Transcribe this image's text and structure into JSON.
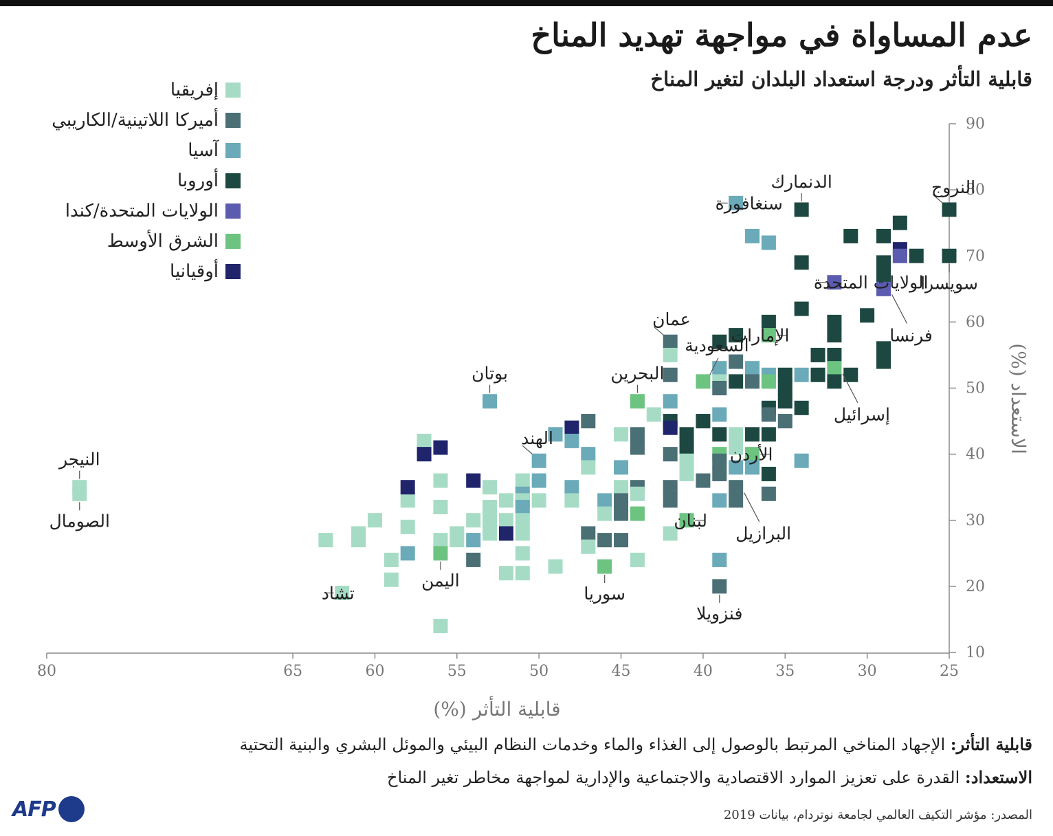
{
  "title": "عدم المساواة في مواجهة تهديد المناخ",
  "subtitle": "قابلية التأثر ودرجة استعداد البلدان لتغير المناخ",
  "definitions": {
    "vulnerability_label": "قابلية التأثر:",
    "vulnerability_text": "الإجهاد المناخي المرتبط بالوصول إلى الغذاء والماء وخدمات النظام البيئي والموئل البشري والبنية التحتية",
    "readiness_label": "الاستعداد:",
    "readiness_text": "القدرة على تعزيز الموارد الاقتصادية والاجتماعية والإدارية لمواجهة مخاطر تغير المناخ"
  },
  "source": "المصدر: مؤشر التكيف العالمي لجامعة نوتردام، بيانات 2019",
  "logo": {
    "text": "AFP",
    "color": "#1e3a8a"
  },
  "chart_data": {
    "type": "scatter",
    "xlabel": "قابلية التأثر (%)",
    "ylabel": "الاستعداد (%)",
    "xlim": [
      80,
      25
    ],
    "ylim": [
      10,
      90
    ],
    "xticks": [
      80,
      65,
      60,
      55,
      50,
      45,
      40,
      35,
      30,
      25
    ],
    "yticks": [
      10,
      20,
      30,
      40,
      50,
      60,
      70,
      80,
      90
    ],
    "grid": false,
    "legend_position": "top-left",
    "regions": [
      {
        "key": "africa",
        "name": "إفريقيا",
        "color": "#a6dcc5"
      },
      {
        "key": "latam",
        "name": "أميركا اللاتينية/الكاريبي",
        "color": "#4a6f75"
      },
      {
        "key": "asia",
        "name": "آسيا",
        "color": "#6aaab9"
      },
      {
        "key": "europe",
        "name": "أوروبا",
        "color": "#1d4842"
      },
      {
        "key": "usca",
        "name": "الولايات المتحدة/كندا",
        "color": "#5b5bb0"
      },
      {
        "key": "mideast",
        "name": "الشرق الأوسط",
        "color": "#6cc480"
      },
      {
        "key": "oceania",
        "name": "أوقيانيا",
        "color": "#1f246b"
      }
    ],
    "points": [
      {
        "x": 78,
        "y": 35,
        "r": "africa"
      },
      {
        "x": 78,
        "y": 34,
        "r": "africa"
      },
      {
        "x": 63,
        "y": 27,
        "r": "africa"
      },
      {
        "x": 62,
        "y": 19,
        "r": "africa"
      },
      {
        "x": 61,
        "y": 28,
        "r": "africa"
      },
      {
        "x": 61,
        "y": 27,
        "r": "africa"
      },
      {
        "x": 60,
        "y": 30,
        "r": "africa"
      },
      {
        "x": 59,
        "y": 24,
        "r": "africa"
      },
      {
        "x": 59,
        "y": 21,
        "r": "africa"
      },
      {
        "x": 58,
        "y": 33,
        "r": "africa"
      },
      {
        "x": 58,
        "y": 29,
        "r": "africa"
      },
      {
        "x": 58,
        "y": 25,
        "r": "asia"
      },
      {
        "x": 58,
        "y": 35,
        "r": "oceania"
      },
      {
        "x": 57,
        "y": 42,
        "r": "africa"
      },
      {
        "x": 57,
        "y": 40,
        "r": "oceania"
      },
      {
        "x": 56,
        "y": 41,
        "r": "oceania"
      },
      {
        "x": 56,
        "y": 36,
        "r": "africa"
      },
      {
        "x": 56,
        "y": 32,
        "r": "africa"
      },
      {
        "x": 56,
        "y": 27,
        "r": "africa"
      },
      {
        "x": 56,
        "y": 25,
        "r": "mideast"
      },
      {
        "x": 56,
        "y": 14,
        "r": "africa"
      },
      {
        "x": 55,
        "y": 28,
        "r": "africa"
      },
      {
        "x": 55,
        "y": 27,
        "r": "africa"
      },
      {
        "x": 54,
        "y": 36,
        "r": "oceania"
      },
      {
        "x": 54,
        "y": 30,
        "r": "africa"
      },
      {
        "x": 54,
        "y": 27,
        "r": "asia"
      },
      {
        "x": 54,
        "y": 24,
        "r": "latam"
      },
      {
        "x": 53,
        "y": 48,
        "r": "asia"
      },
      {
        "x": 53,
        "y": 35,
        "r": "africa"
      },
      {
        "x": 53,
        "y": 32,
        "r": "africa"
      },
      {
        "x": 53,
        "y": 30,
        "r": "africa"
      },
      {
        "x": 53,
        "y": 28,
        "r": "africa"
      },
      {
        "x": 52,
        "y": 33,
        "r": "africa"
      },
      {
        "x": 52,
        "y": 30,
        "r": "africa"
      },
      {
        "x": 52,
        "y": 28,
        "r": "oceania"
      },
      {
        "x": 52,
        "y": 22,
        "r": "africa"
      },
      {
        "x": 51,
        "y": 36,
        "r": "africa"
      },
      {
        "x": 51,
        "y": 34,
        "r": "asia"
      },
      {
        "x": 51,
        "y": 33,
        "r": "africa"
      },
      {
        "x": 51,
        "y": 32,
        "r": "asia"
      },
      {
        "x": 51,
        "y": 30,
        "r": "africa"
      },
      {
        "x": 51,
        "y": 28,
        "r": "africa"
      },
      {
        "x": 51,
        "y": 25,
        "r": "africa"
      },
      {
        "x": 51,
        "y": 22,
        "r": "africa"
      },
      {
        "x": 50,
        "y": 39,
        "r": "asia"
      },
      {
        "x": 50,
        "y": 36,
        "r": "asia"
      },
      {
        "x": 50,
        "y": 33,
        "r": "africa"
      },
      {
        "x": 49,
        "y": 43,
        "r": "asia"
      },
      {
        "x": 49,
        "y": 23,
        "r": "africa"
      },
      {
        "x": 48,
        "y": 44,
        "r": "oceania"
      },
      {
        "x": 48,
        "y": 42,
        "r": "asia"
      },
      {
        "x": 48,
        "y": 35,
        "r": "asia"
      },
      {
        "x": 48,
        "y": 33,
        "r": "africa"
      },
      {
        "x": 47,
        "y": 45,
        "r": "latam"
      },
      {
        "x": 47,
        "y": 40,
        "r": "asia"
      },
      {
        "x": 47,
        "y": 38,
        "r": "africa"
      },
      {
        "x": 47,
        "y": 28,
        "r": "latam"
      },
      {
        "x": 47,
        "y": 26,
        "r": "africa"
      },
      {
        "x": 46,
        "y": 33,
        "r": "asia"
      },
      {
        "x": 46,
        "y": 31,
        "r": "africa"
      },
      {
        "x": 46,
        "y": 27,
        "r": "latam"
      },
      {
        "x": 46,
        "y": 23,
        "r": "mideast"
      },
      {
        "x": 45,
        "y": 43,
        "r": "africa"
      },
      {
        "x": 45,
        "y": 38,
        "r": "asia"
      },
      {
        "x": 45,
        "y": 35,
        "r": "africa"
      },
      {
        "x": 45,
        "y": 33,
        "r": "latam"
      },
      {
        "x": 45,
        "y": 31,
        "r": "latam"
      },
      {
        "x": 45,
        "y": 27,
        "r": "latam"
      },
      {
        "x": 44,
        "y": 48,
        "r": "mideast"
      },
      {
        "x": 44,
        "y": 43,
        "r": "latam"
      },
      {
        "x": 44,
        "y": 41,
        "r": "latam"
      },
      {
        "x": 44,
        "y": 35,
        "r": "latam"
      },
      {
        "x": 44,
        "y": 34,
        "r": "africa"
      },
      {
        "x": 44,
        "y": 31,
        "r": "mideast"
      },
      {
        "x": 44,
        "y": 24,
        "r": "africa"
      },
      {
        "x": 43,
        "y": 46,
        "r": "africa"
      },
      {
        "x": 42,
        "y": 57,
        "r": "latam"
      },
      {
        "x": 42,
        "y": 55,
        "r": "africa"
      },
      {
        "x": 42,
        "y": 52,
        "r": "latam"
      },
      {
        "x": 42,
        "y": 48,
        "r": "asia"
      },
      {
        "x": 42,
        "y": 45,
        "r": "europe"
      },
      {
        "x": 42,
        "y": 44,
        "r": "oceania"
      },
      {
        "x": 42,
        "y": 40,
        "r": "latam"
      },
      {
        "x": 42,
        "y": 35,
        "r": "latam"
      },
      {
        "x": 42,
        "y": 33,
        "r": "latam"
      },
      {
        "x": 42,
        "y": 28,
        "r": "africa"
      },
      {
        "x": 41,
        "y": 43,
        "r": "europe"
      },
      {
        "x": 41,
        "y": 41,
        "r": "europe"
      },
      {
        "x": 41,
        "y": 39,
        "r": "africa"
      },
      {
        "x": 41,
        "y": 37,
        "r": "africa"
      },
      {
        "x": 41,
        "y": 30,
        "r": "mideast"
      },
      {
        "x": 40,
        "y": 51,
        "r": "mideast"
      },
      {
        "x": 40,
        "y": 45,
        "r": "europe"
      },
      {
        "x": 40,
        "y": 36,
        "r": "latam"
      },
      {
        "x": 39,
        "y": 57,
        "r": "europe"
      },
      {
        "x": 39,
        "y": 53,
        "r": "asia"
      },
      {
        "x": 39,
        "y": 51,
        "r": "africa"
      },
      {
        "x": 39,
        "y": 50,
        "r": "latam"
      },
      {
        "x": 39,
        "y": 46,
        "r": "asia"
      },
      {
        "x": 39,
        "y": 43,
        "r": "europe"
      },
      {
        "x": 39,
        "y": 40,
        "r": "mideast"
      },
      {
        "x": 39,
        "y": 39,
        "r": "latam"
      },
      {
        "x": 39,
        "y": 37,
        "r": "latam"
      },
      {
        "x": 39,
        "y": 33,
        "r": "asia"
      },
      {
        "x": 39,
        "y": 24,
        "r": "asia"
      },
      {
        "x": 39,
        "y": 20,
        "r": "latam"
      },
      {
        "x": 38,
        "y": 58,
        "r": "europe"
      },
      {
        "x": 38,
        "y": 54,
        "r": "latam"
      },
      {
        "x": 38,
        "y": 51,
        "r": "europe"
      },
      {
        "x": 38,
        "y": 43,
        "r": "africa"
      },
      {
        "x": 38,
        "y": 41,
        "r": "africa"
      },
      {
        "x": 38,
        "y": 38,
        "r": "asia"
      },
      {
        "x": 38,
        "y": 35,
        "r": "latam"
      },
      {
        "x": 38,
        "y": 33,
        "r": "latam"
      },
      {
        "x": 37,
        "y": 53,
        "r": "asia"
      },
      {
        "x": 37,
        "y": 51,
        "r": "latam"
      },
      {
        "x": 37,
        "y": 43,
        "r": "europe"
      },
      {
        "x": 37,
        "y": 40,
        "r": "mideast"
      },
      {
        "x": 37,
        "y": 38,
        "r": "asia"
      },
      {
        "x": 36,
        "y": 72,
        "r": "asia"
      },
      {
        "x": 36,
        "y": 60,
        "r": "europe"
      },
      {
        "x": 36,
        "y": 58,
        "r": "mideast"
      },
      {
        "x": 36,
        "y": 52,
        "r": "asia"
      },
      {
        "x": 36,
        "y": 51,
        "r": "mideast"
      },
      {
        "x": 36,
        "y": 47,
        "r": "europe"
      },
      {
        "x": 36,
        "y": 46,
        "r": "latam"
      },
      {
        "x": 36,
        "y": 43,
        "r": "europe"
      },
      {
        "x": 36,
        "y": 37,
        "r": "europe"
      },
      {
        "x": 36,
        "y": 34,
        "r": "latam"
      },
      {
        "x": 35,
        "y": 52,
        "r": "europe"
      },
      {
        "x": 35,
        "y": 50,
        "r": "europe"
      },
      {
        "x": 35,
        "y": 48,
        "r": "europe"
      },
      {
        "x": 35,
        "y": 45,
        "r": "latam"
      },
      {
        "x": 37,
        "y": 73,
        "r": "asia"
      },
      {
        "x": 34,
        "y": 77,
        "r": "europe"
      },
      {
        "x": 34,
        "y": 69,
        "r": "europe"
      },
      {
        "x": 34,
        "y": 62,
        "r": "europe"
      },
      {
        "x": 34,
        "y": 52,
        "r": "asia"
      },
      {
        "x": 34,
        "y": 47,
        "r": "europe"
      },
      {
        "x": 34,
        "y": 39,
        "r": "asia"
      },
      {
        "x": 33,
        "y": 55,
        "r": "europe"
      },
      {
        "x": 33,
        "y": 52,
        "r": "europe"
      },
      {
        "x": 32,
        "y": 66,
        "r": "usca"
      },
      {
        "x": 32,
        "y": 60,
        "r": "europe"
      },
      {
        "x": 32,
        "y": 58,
        "r": "europe"
      },
      {
        "x": 32,
        "y": 55,
        "r": "europe"
      },
      {
        "x": 32,
        "y": 53,
        "r": "mideast"
      },
      {
        "x": 32,
        "y": 51,
        "r": "europe"
      },
      {
        "x": 31,
        "y": 73,
        "r": "europe"
      },
      {
        "x": 31,
        "y": 52,
        "r": "europe"
      },
      {
        "x": 30,
        "y": 61,
        "r": "europe"
      },
      {
        "x": 29,
        "y": 73,
        "r": "europe"
      },
      {
        "x": 29,
        "y": 69,
        "r": "europe"
      },
      {
        "x": 29,
        "y": 67,
        "r": "europe"
      },
      {
        "x": 29,
        "y": 65,
        "r": "usca"
      },
      {
        "x": 29,
        "y": 56,
        "r": "europe"
      },
      {
        "x": 29,
        "y": 54,
        "r": "europe"
      },
      {
        "x": 28,
        "y": 75,
        "r": "europe"
      },
      {
        "x": 28,
        "y": 71,
        "r": "oceania"
      },
      {
        "x": 28,
        "y": 70,
        "r": "usca"
      },
      {
        "x": 27,
        "y": 70,
        "r": "europe"
      },
      {
        "x": 25,
        "y": 77,
        "r": "europe"
      },
      {
        "x": 25,
        "y": 70,
        "r": "europe"
      },
      {
        "x": 38,
        "y": 78,
        "r": "asia"
      }
    ],
    "annotations": [
      {
        "text": "النيجر",
        "x": 78,
        "y": 35,
        "side": "above"
      },
      {
        "text": "الصومال",
        "x": 78,
        "y": 34,
        "side": "below"
      },
      {
        "text": "تشاد",
        "x": 62,
        "y": 19,
        "side": "left"
      },
      {
        "text": "اليمن",
        "x": 56,
        "y": 25,
        "side": "below"
      },
      {
        "text": "بوتان",
        "x": 53,
        "y": 48,
        "side": "above"
      },
      {
        "text": "الهند",
        "x": 50,
        "y": 39,
        "side": "upleft"
      },
      {
        "text": "البحرين",
        "x": 44,
        "y": 48,
        "side": "above"
      },
      {
        "text": "سوريا",
        "x": 46,
        "y": 23,
        "side": "below"
      },
      {
        "text": "عمان",
        "x": 42,
        "y": 57,
        "side": "upleft"
      },
      {
        "text": "السعودية",
        "x": 40,
        "y": 51,
        "side": "upright"
      },
      {
        "text": "لبنان",
        "x": 41,
        "y": 30,
        "side": "right"
      },
      {
        "text": "فنزويلا",
        "x": 39,
        "y": 20,
        "side": "below"
      },
      {
        "text": "البرازيل",
        "x": 38,
        "y": 35,
        "side": "downright"
      },
      {
        "text": "الأردن",
        "x": 37,
        "y": 40,
        "side": "right"
      },
      {
        "text": "الإمارات",
        "x": 36,
        "y": 58,
        "side": "right"
      },
      {
        "text": "سنغافورة",
        "x": 38,
        "y": 78,
        "side": "left"
      },
      {
        "text": "الدنمارك",
        "x": 34,
        "y": 77,
        "side": "above"
      },
      {
        "text": "الولايات المتحدة",
        "x": 32,
        "y": 66,
        "side": "left"
      },
      {
        "text": "إسرائيل",
        "x": 32,
        "y": 53,
        "side": "downright"
      },
      {
        "text": "النروج",
        "x": 25,
        "y": 77,
        "side": "upleft"
      },
      {
        "text": "فرنسا",
        "x": 29,
        "y": 65,
        "side": "downright"
      },
      {
        "text": "سويسرا",
        "x": 25,
        "y": 70,
        "side": "below"
      }
    ]
  }
}
